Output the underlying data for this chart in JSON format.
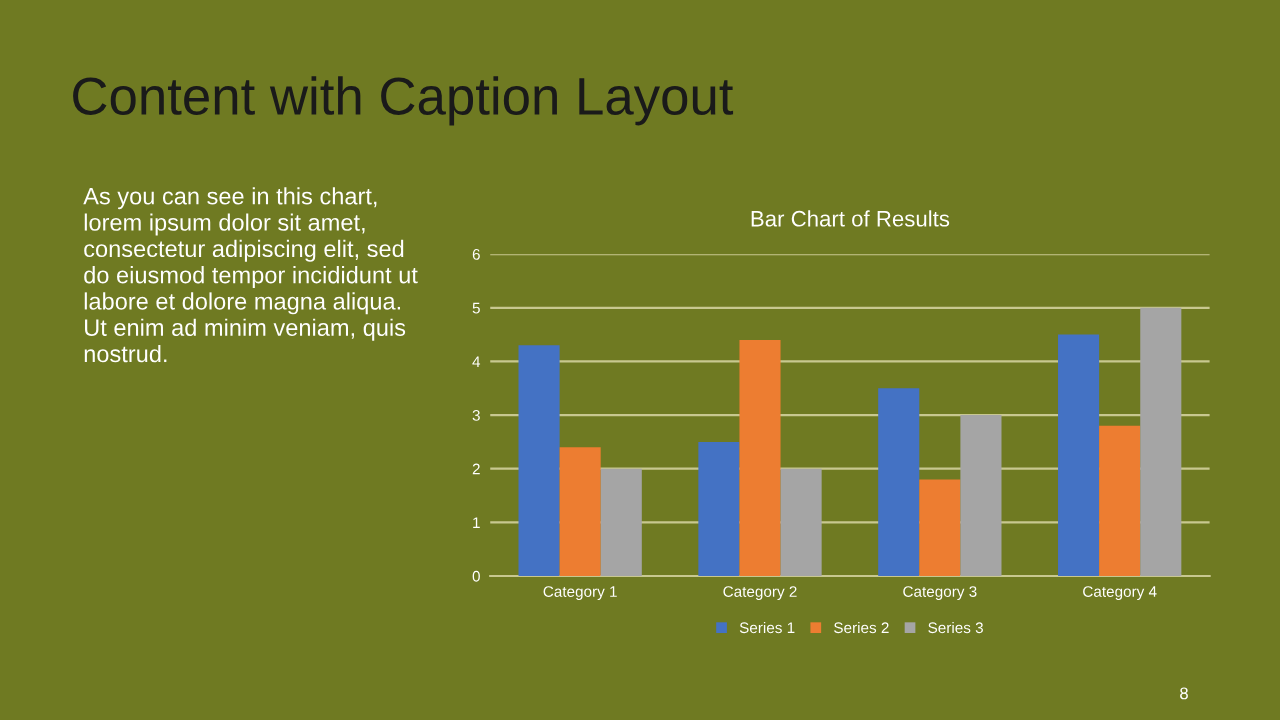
{
  "chart_data": {
    "type": "bar",
    "title": "Bar Chart of Results",
    "categories": [
      "Category 1",
      "Category 2",
      "Category 3",
      "Category 4"
    ],
    "series": [
      {
        "name": "Series 1",
        "color": "#4472c4",
        "values": [
          4.3,
          2.5,
          3.5,
          4.5
        ]
      },
      {
        "name": "Series 2",
        "color": "#ed7d31",
        "values": [
          2.4,
          4.4,
          1.8,
          2.8
        ]
      },
      {
        "name": "Series 3",
        "color": "#a5a5a5",
        "values": [
          2,
          2,
          3,
          5
        ]
      }
    ],
    "ylim": [
      0,
      6
    ],
    "yticks": [
      0,
      1,
      2,
      3,
      4,
      5,
      6
    ],
    "grid": "y",
    "legend": "bottom",
    "annotations": [
      "Content with Caption Layout",
      "As you can see in this chart,\nlorem ipsum dolor sit amet,\nconsectetur adipiscing elit, sed\ndo eiusmod tempor incididunt ut\nlabore et dolore magna aliqua.\nUt enim ad minim veniam, quis\nnostrud.",
      "8"
    ]
  }
}
